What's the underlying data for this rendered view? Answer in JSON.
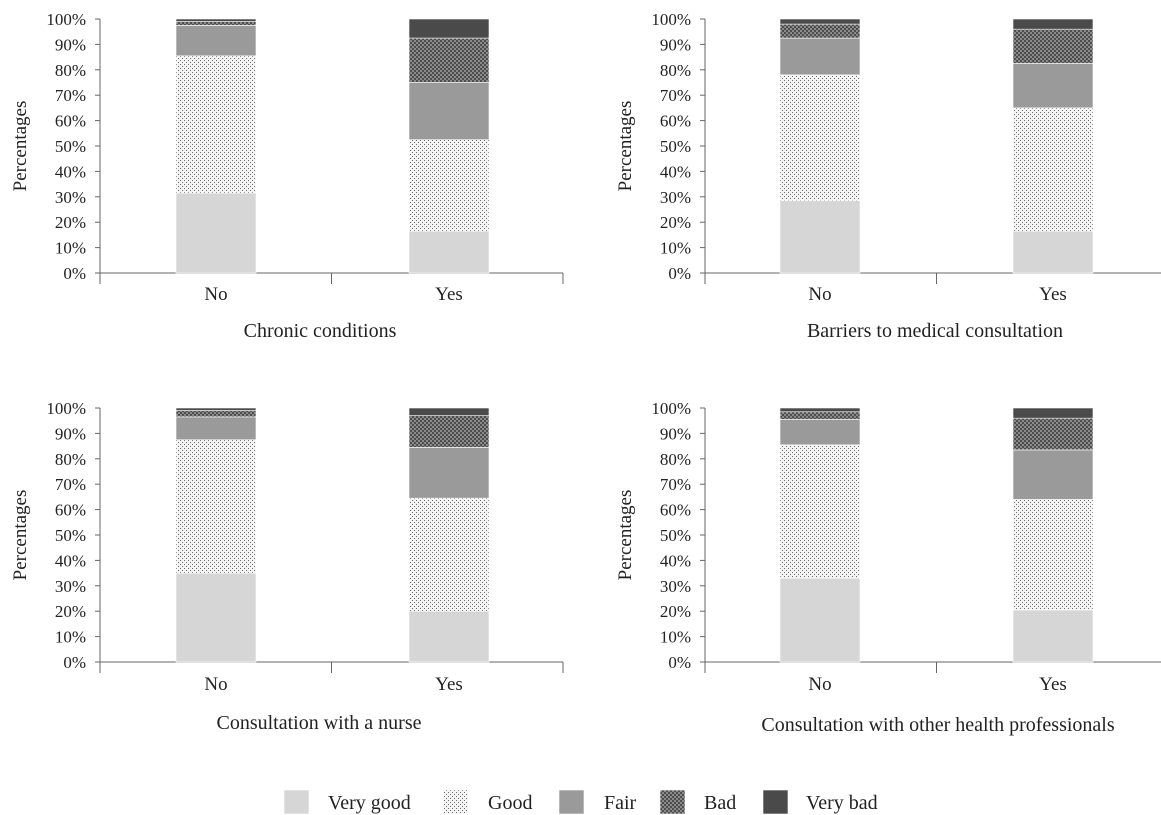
{
  "chart_data": [
    {
      "type": "bar",
      "stacked": true,
      "title": "Chronic conditions",
      "ylabel": "Percentages",
      "categories": [
        "No",
        "Yes"
      ],
      "ylim": [
        0,
        100
      ],
      "yticks": [
        "0%",
        "10%",
        "20%",
        "30%",
        "40%",
        "50%",
        "60%",
        "70%",
        "80%",
        "90%",
        "100%"
      ],
      "series": [
        {
          "name": "Very good",
          "values": [
            31.5,
            16.5
          ]
        },
        {
          "name": "Good",
          "values": [
            54,
            36
          ]
        },
        {
          "name": "Fair",
          "values": [
            12,
            22.5
          ]
        },
        {
          "name": "Bad",
          "values": [
            1.5,
            17.5
          ]
        },
        {
          "name": "Very bad",
          "values": [
            1,
            7.5
          ]
        }
      ]
    },
    {
      "type": "bar",
      "stacked": true,
      "title": "Barriers to medical consultation",
      "ylabel": "Percentages",
      "categories": [
        "No",
        "Yes"
      ],
      "ylim": [
        0,
        100
      ],
      "yticks": [
        "0%",
        "10%",
        "20%",
        "30%",
        "40%",
        "50%",
        "60%",
        "70%",
        "80%",
        "90%",
        "100%"
      ],
      "series": [
        {
          "name": "Very good",
          "values": [
            28.5,
            16.5
          ]
        },
        {
          "name": "Good",
          "values": [
            49.5,
            48.5
          ]
        },
        {
          "name": "Fair",
          "values": [
            14.5,
            17.5
          ]
        },
        {
          "name": "Bad",
          "values": [
            5.5,
            13.5
          ]
        },
        {
          "name": "Very bad",
          "values": [
            2,
            4
          ]
        }
      ]
    },
    {
      "type": "bar",
      "stacked": true,
      "title": "Consultation with a nurse",
      "ylabel": "Percentages",
      "categories": [
        "No",
        "Yes"
      ],
      "ylim": [
        0,
        100
      ],
      "yticks": [
        "0%",
        "10%",
        "20%",
        "30%",
        "40%",
        "50%",
        "60%",
        "70%",
        "80%",
        "90%",
        "100%"
      ],
      "series": [
        {
          "name": "Very good",
          "values": [
            35,
            20
          ]
        },
        {
          "name": "Good",
          "values": [
            52.5,
            44.5
          ]
        },
        {
          "name": "Fair",
          "values": [
            9,
            20
          ]
        },
        {
          "name": "Bad",
          "values": [
            2.5,
            12.5
          ]
        },
        {
          "name": "Very bad",
          "values": [
            1,
            3
          ]
        }
      ]
    },
    {
      "type": "bar",
      "stacked": true,
      "title": "Consultation with other health professionals",
      "ylabel": "Percentages",
      "categories": [
        "No",
        "Yes"
      ],
      "ylim": [
        0,
        100
      ],
      "yticks": [
        "0%",
        "10%",
        "20%",
        "30%",
        "40%",
        "50%",
        "60%",
        "70%",
        "80%",
        "90%",
        "100%"
      ],
      "series": [
        {
          "name": "Very good",
          "values": [
            33,
            20.5
          ]
        },
        {
          "name": "Good",
          "values": [
            52.5,
            43.5
          ]
        },
        {
          "name": "Fair",
          "values": [
            10,
            19.5
          ]
        },
        {
          "name": "Bad",
          "values": [
            3,
            12.5
          ]
        },
        {
          "name": "Very bad",
          "values": [
            1.5,
            4
          ]
        }
      ]
    }
  ],
  "legend": {
    "placement": "bottom-center",
    "items": [
      {
        "label": "Very good",
        "color": "#d6d6d6",
        "pattern": "solid"
      },
      {
        "label": "Good",
        "color": "#f3f3f3",
        "pattern": "dots"
      },
      {
        "label": "Fair",
        "color": "#9a9a9a",
        "pattern": "solid"
      },
      {
        "label": "Bad",
        "color": "#7a7a7a",
        "pattern": "crosshatch"
      },
      {
        "label": "Very bad",
        "color": "#4a4a4a",
        "pattern": "solid"
      }
    ]
  }
}
